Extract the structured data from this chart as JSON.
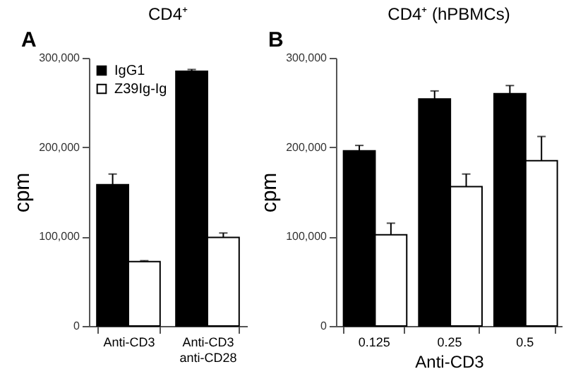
{
  "chart_data": [
    {
      "type": "bar",
      "title": "CD4⁺",
      "ylabel": "cpm",
      "annotations": [
        "A"
      ],
      "categories": [
        "Anti-CD3",
        "Anti-CD3\nanti-CD28"
      ],
      "series": [
        {
          "name": "IgG1",
          "color": "#000000",
          "values": [
            158000,
            285000
          ],
          "errors": [
            [
              158000,
              170000
            ],
            [
              285000,
              287000
            ]
          ]
        },
        {
          "name": "Z39Ig-Ig",
          "color": "#ffffff",
          "values": [
            72000,
            99000
          ],
          "errors": [
            [
              72000,
              73000
            ],
            [
              99000,
              104000
            ]
          ]
        }
      ],
      "ylim": [
        0,
        300000
      ],
      "yticks": [
        0,
        {
          "value": 100000,
          "label": "100,000"
        },
        {
          "value": 200000,
          "label": "200,000"
        },
        {
          "value": 300000,
          "label": "300,000"
        }
      ],
      "grid": false,
      "legend": "top left"
    },
    {
      "type": "bar",
      "title": "CD4⁺ (hPBMCs)",
      "xlabel": "Anti-CD3",
      "ylabel": "cpm",
      "annotations": [
        "B"
      ],
      "categories": [
        "0.125",
        "0.25",
        "0.5"
      ],
      "series": [
        {
          "color": "#000000",
          "values": [
            196000,
            254000,
            260000
          ],
          "errors": [
            [
              196000,
              202000
            ],
            [
              254000,
              263000
            ],
            [
              260000,
              269000
            ]
          ]
        },
        {
          "color": "#ffffff",
          "values": [
            102000,
            156000,
            185000
          ],
          "errors": [
            [
              102000,
              115000
            ],
            [
              156000,
              170000
            ],
            [
              185000,
              212000
            ]
          ]
        }
      ],
      "ylim": [
        0,
        300000
      ],
      "yticks": [
        0,
        {
          "value": 100000,
          "label": "100,000"
        },
        {
          "value": 200000,
          "label": "200,000"
        },
        {
          "value": 300000,
          "label": "300,000"
        }
      ],
      "grid": false,
      "legend": false
    }
  ]
}
